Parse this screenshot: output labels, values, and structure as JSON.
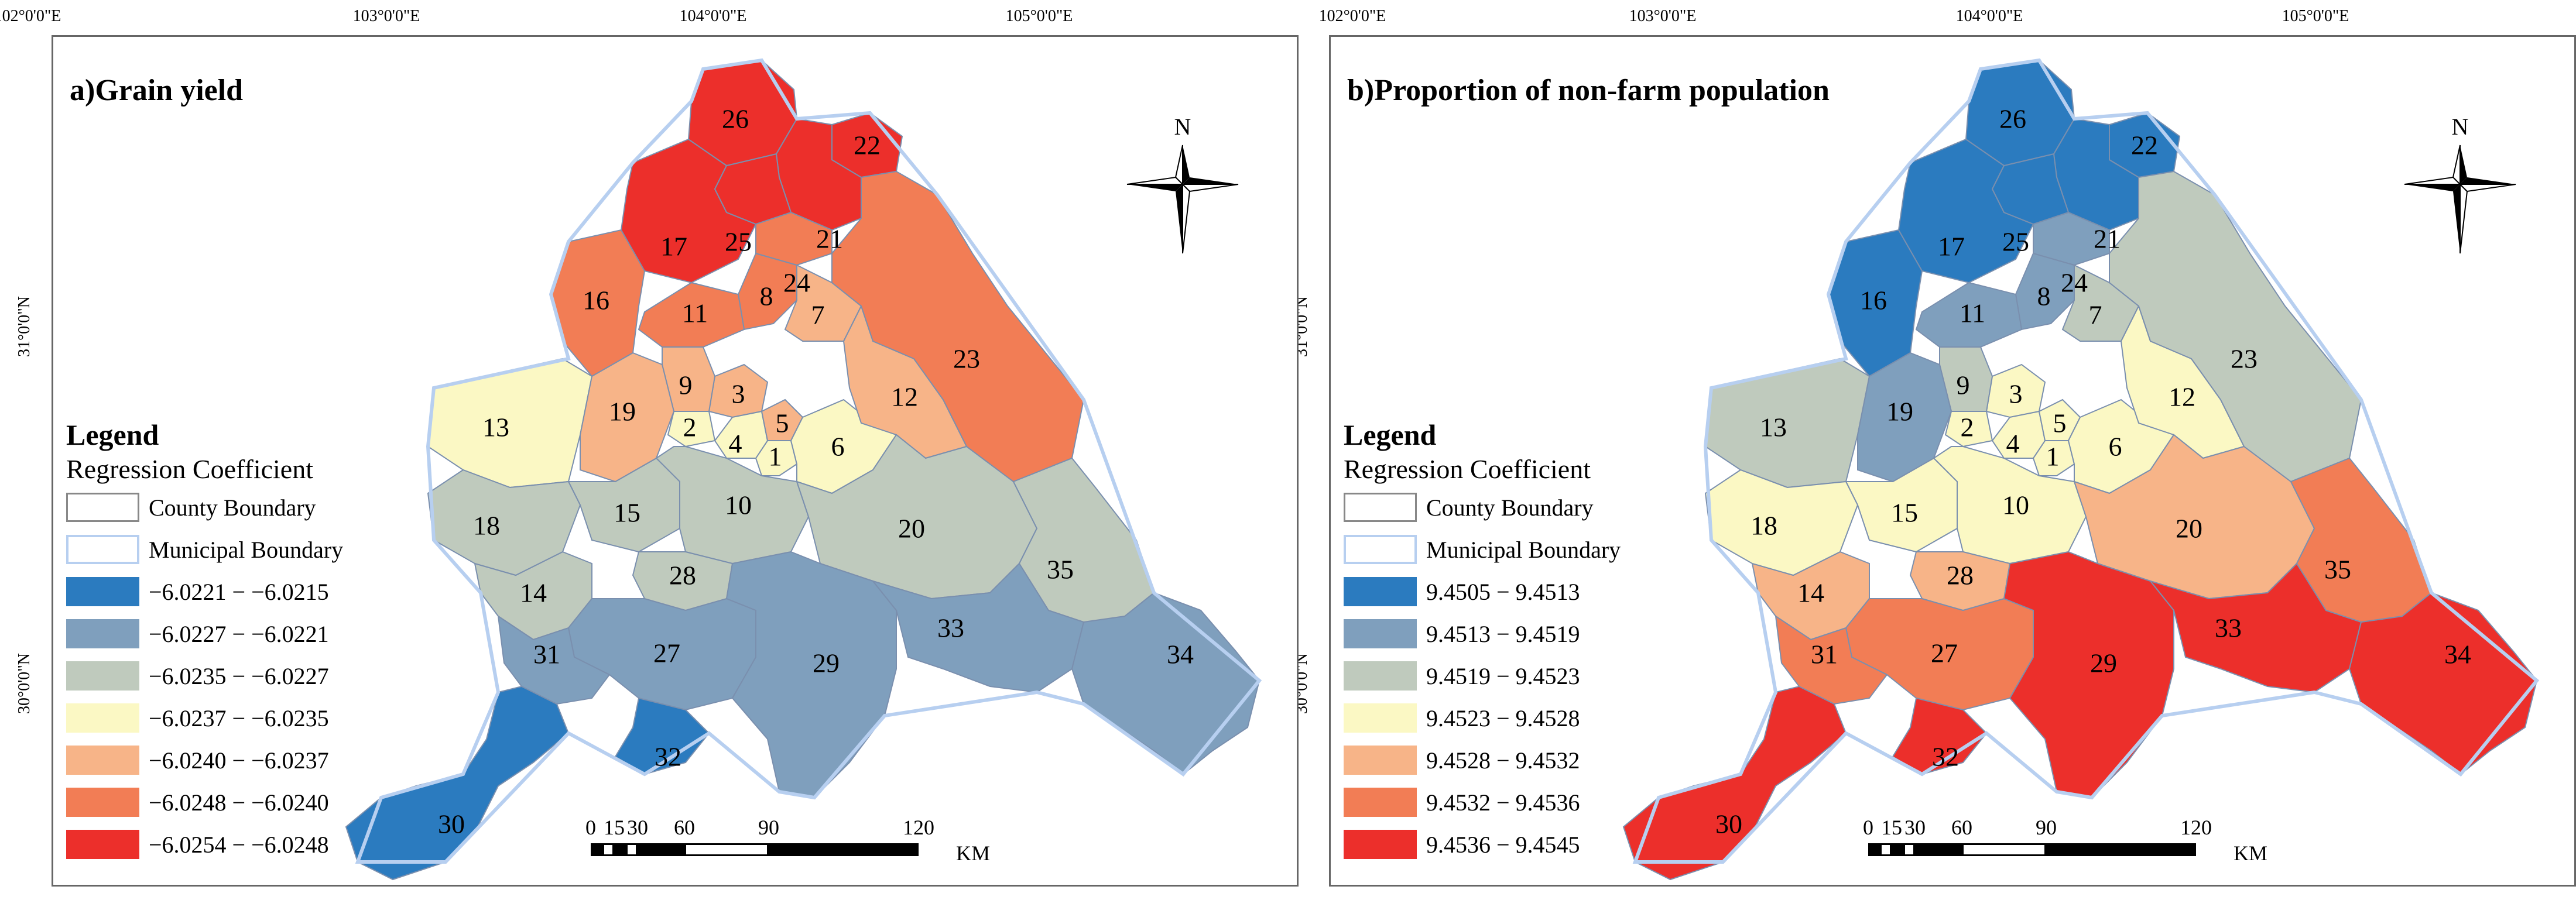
{
  "axes": {
    "longitude_ticks": [
      "102°0'0\"E",
      "103°0'0\"E",
      "104°0'0\"E",
      "105°0'0\"E"
    ],
    "latitude_ticks": [
      "31°0'0\"N",
      "30°0'0\"N"
    ]
  },
  "north_arrow": {
    "label": "N",
    "icon": "compass-rose-icon"
  },
  "scale": {
    "ticks": [
      "0",
      "15",
      "30",
      "60",
      "90",
      "120"
    ],
    "unit": "KM"
  },
  "region_ids": [
    "1",
    "2",
    "3",
    "4",
    "5",
    "6",
    "7",
    "8",
    "9",
    "10",
    "11",
    "12",
    "13",
    "14",
    "15",
    "16",
    "17",
    "18",
    "19",
    "20",
    "21",
    "22",
    "23",
    "24",
    "25",
    "26",
    "27",
    "28",
    "29",
    "30",
    "31",
    "32",
    "33",
    "34",
    "35"
  ],
  "panels": [
    {
      "title": "a)Grain yield",
      "legend": {
        "title": "Legend",
        "subtitle": "Regression Coefficient",
        "county_boundary": "County Boundary",
        "municipal_boundary": "Municipal Boundary",
        "classes": [
          {
            "label": "−6.0221 − −6.0215",
            "color": "#2b7bbf"
          },
          {
            "label": "−6.0227 − −6.0221",
            "color": "#7f9fbd"
          },
          {
            "label": "−6.0235 − −6.0227",
            "color": "#bfcabd"
          },
          {
            "label": "−6.0237 − −6.0235",
            "color": "#fbf8c4"
          },
          {
            "label": "−6.0240 − −6.0237",
            "color": "#f7b488"
          },
          {
            "label": "−6.0248 − −6.0240",
            "color": "#f27d55"
          },
          {
            "label": "−6.0254 − −6.0248",
            "color": "#ec2f2b"
          }
        ]
      },
      "region_class": {
        "1": 3,
        "2": 3,
        "3": 4,
        "4": 3,
        "5": 4,
        "6": 3,
        "7": 4,
        "8": 5,
        "9": 4,
        "10": 2,
        "11": 5,
        "12": 4,
        "13": 3,
        "14": 2,
        "15": 2,
        "16": 5,
        "17": 6,
        "18": 2,
        "19": 4,
        "20": 2,
        "21": 6,
        "22": 6,
        "23": 5,
        "24": 5,
        "25": 6,
        "26": 6,
        "27": 1,
        "28": 2,
        "29": 1,
        "30": 0,
        "31": 1,
        "32": 0,
        "33": 1,
        "34": 1,
        "35": 2
      }
    },
    {
      "title": "b)Proportion of non-farm population",
      "legend": {
        "title": "Legend",
        "subtitle": "Regression Coefficient",
        "county_boundary": "County Boundary",
        "municipal_boundary": "Municipal Boundary",
        "classes": [
          {
            "label": "9.4505 − 9.4513",
            "color": "#2b7bbf"
          },
          {
            "label": "9.4513 − 9.4519",
            "color": "#7f9fbd"
          },
          {
            "label": "9.4519 − 9.4523",
            "color": "#bfcabd"
          },
          {
            "label": "9.4523 − 9.4528",
            "color": "#fbf8c4"
          },
          {
            "label": "9.4528 − 9.4532",
            "color": "#f7b488"
          },
          {
            "label": "9.4532 − 9.4536",
            "color": "#f27d55"
          },
          {
            "label": "9.4536 − 9.4545",
            "color": "#ec2f2b"
          }
        ]
      },
      "region_class": {
        "1": 3,
        "2": 3,
        "3": 3,
        "4": 3,
        "5": 3,
        "6": 3,
        "7": 2,
        "8": 1,
        "9": 2,
        "10": 3,
        "11": 1,
        "12": 3,
        "13": 2,
        "14": 4,
        "15": 3,
        "16": 0,
        "17": 0,
        "18": 3,
        "19": 1,
        "20": 4,
        "21": 0,
        "22": 0,
        "23": 2,
        "24": 1,
        "25": 0,
        "26": 0,
        "27": 5,
        "28": 4,
        "29": 6,
        "30": 6,
        "31": 5,
        "32": 6,
        "33": 6,
        "34": 6,
        "35": 5
      }
    }
  ]
}
